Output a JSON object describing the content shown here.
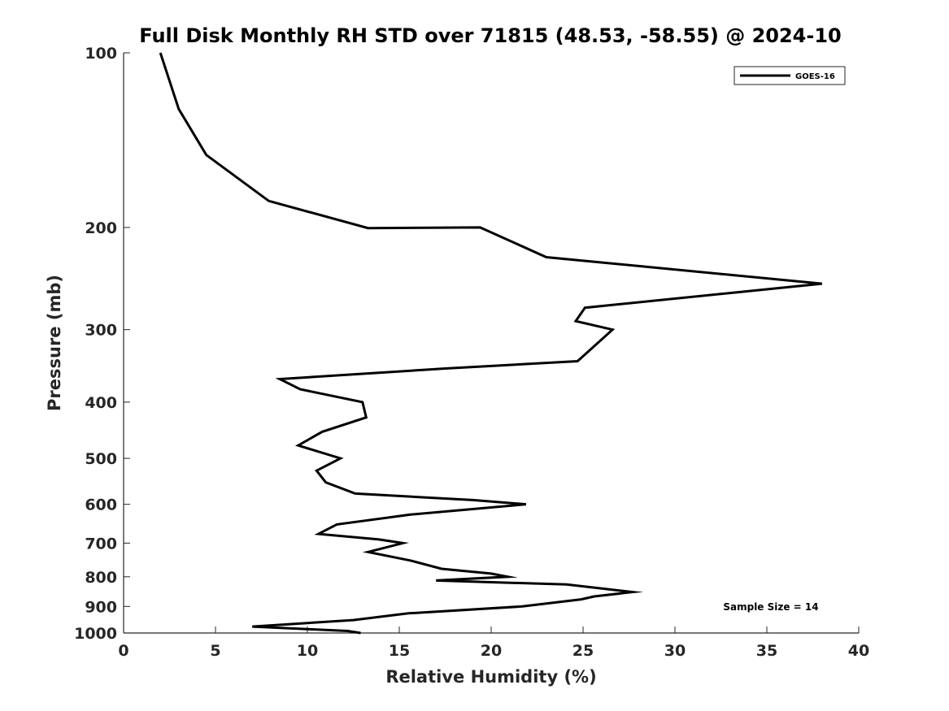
{
  "chart_data": {
    "type": "line",
    "title": "Full Disk Monthly RH STD over 71815 (48.53, -58.55) @ 2024-10",
    "xlabel": "Relative Humidity (%)",
    "ylabel": "Pressure (mb)",
    "xlim": [
      0,
      40
    ],
    "ylim": [
      100,
      1000
    ],
    "y_scale": "log",
    "y_reversed": true,
    "xticks": [
      0,
      5,
      10,
      15,
      20,
      25,
      30,
      35,
      40
    ],
    "yticks": [
      100,
      200,
      300,
      400,
      500,
      600,
      700,
      800,
      900,
      1000
    ],
    "grid": false,
    "legend_position": "top-right",
    "series": [
      {
        "name": "GOES-16",
        "color": "#000000",
        "points": [
          [
            2.0,
            100
          ],
          [
            3.0,
            125
          ],
          [
            4.5,
            150
          ],
          [
            7.9,
            180
          ],
          [
            13.3,
            200.5
          ],
          [
            19.4,
            200
          ],
          [
            23.0,
            225
          ],
          [
            38.0,
            250
          ],
          [
            25.1,
            275
          ],
          [
            24.6,
            290
          ],
          [
            26.6,
            300
          ],
          [
            24.7,
            340
          ],
          [
            17.5,
            350
          ],
          [
            8.5,
            365
          ],
          [
            9.6,
            380
          ],
          [
            13.0,
            400
          ],
          [
            13.2,
            425
          ],
          [
            10.8,
            450
          ],
          [
            9.5,
            475
          ],
          [
            11.8,
            500
          ],
          [
            10.5,
            525
          ],
          [
            11.0,
            550
          ],
          [
            12.6,
            575
          ],
          [
            19.0,
            590
          ],
          [
            21.9,
            600
          ],
          [
            15.6,
            625
          ],
          [
            11.6,
            650
          ],
          [
            10.6,
            675
          ],
          [
            13.9,
            690
          ],
          [
            15.2,
            700
          ],
          [
            13.3,
            725
          ],
          [
            15.6,
            750
          ],
          [
            17.3,
            775
          ],
          [
            20.0,
            790
          ],
          [
            20.9,
            800
          ],
          [
            17.0,
            812
          ],
          [
            24.1,
            825
          ],
          [
            27.7,
            850
          ],
          [
            25.6,
            865
          ],
          [
            24.9,
            875
          ],
          [
            21.7,
            900
          ],
          [
            15.5,
            925
          ],
          [
            12.5,
            950
          ],
          [
            7.0,
            975
          ],
          [
            10.0,
            985
          ],
          [
            12.2,
            992
          ],
          [
            12.9,
            1000
          ]
        ]
      }
    ],
    "annotations": [
      {
        "text": "Sample Size = 14"
      }
    ]
  }
}
